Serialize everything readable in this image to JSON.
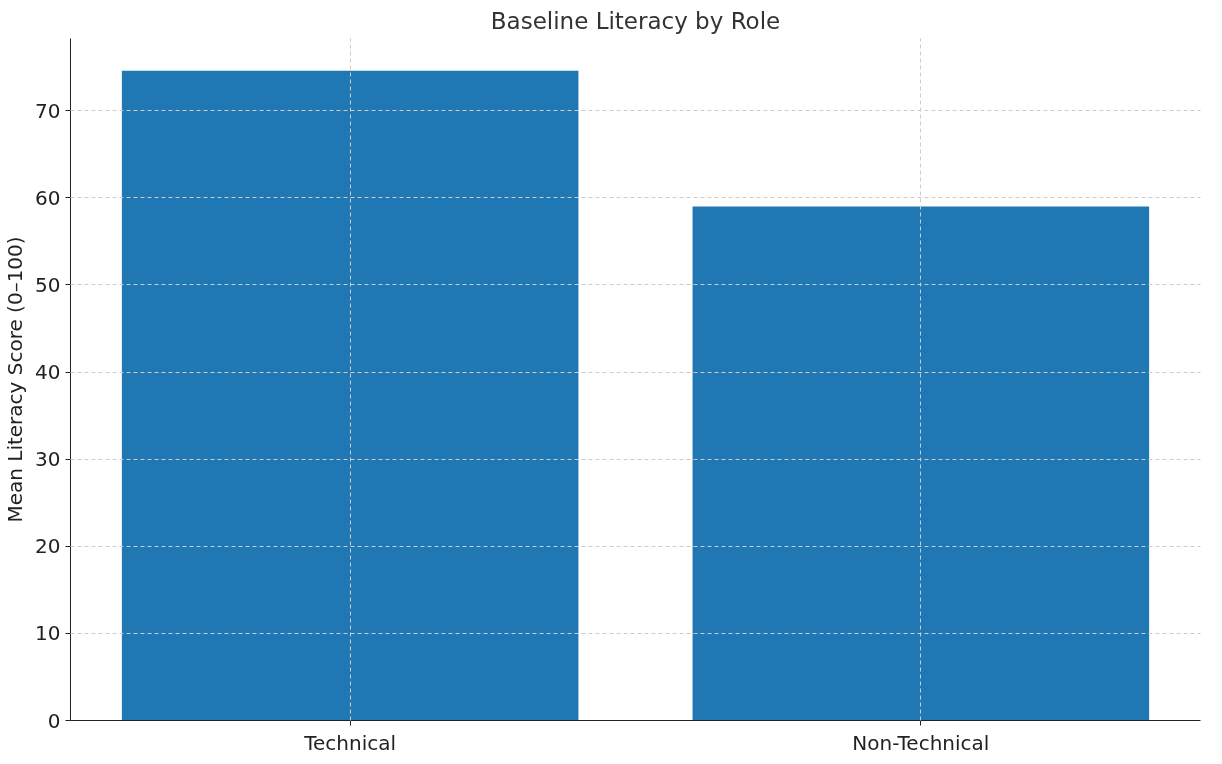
{
  "chart_data": {
    "type": "bar",
    "title": "Baseline Literacy by Role",
    "ylabel": "Mean Literacy Score (0–100)",
    "categories": [
      "Technical",
      "Non-Technical"
    ],
    "series": [
      {
        "color": "#1f77b4",
        "values": [
          74.6,
          59.0
        ]
      }
    ],
    "ylim": [
      0,
      78.3
    ],
    "yticks": [
      0,
      10,
      20,
      30,
      40,
      50,
      60,
      70
    ],
    "grid": true
  }
}
